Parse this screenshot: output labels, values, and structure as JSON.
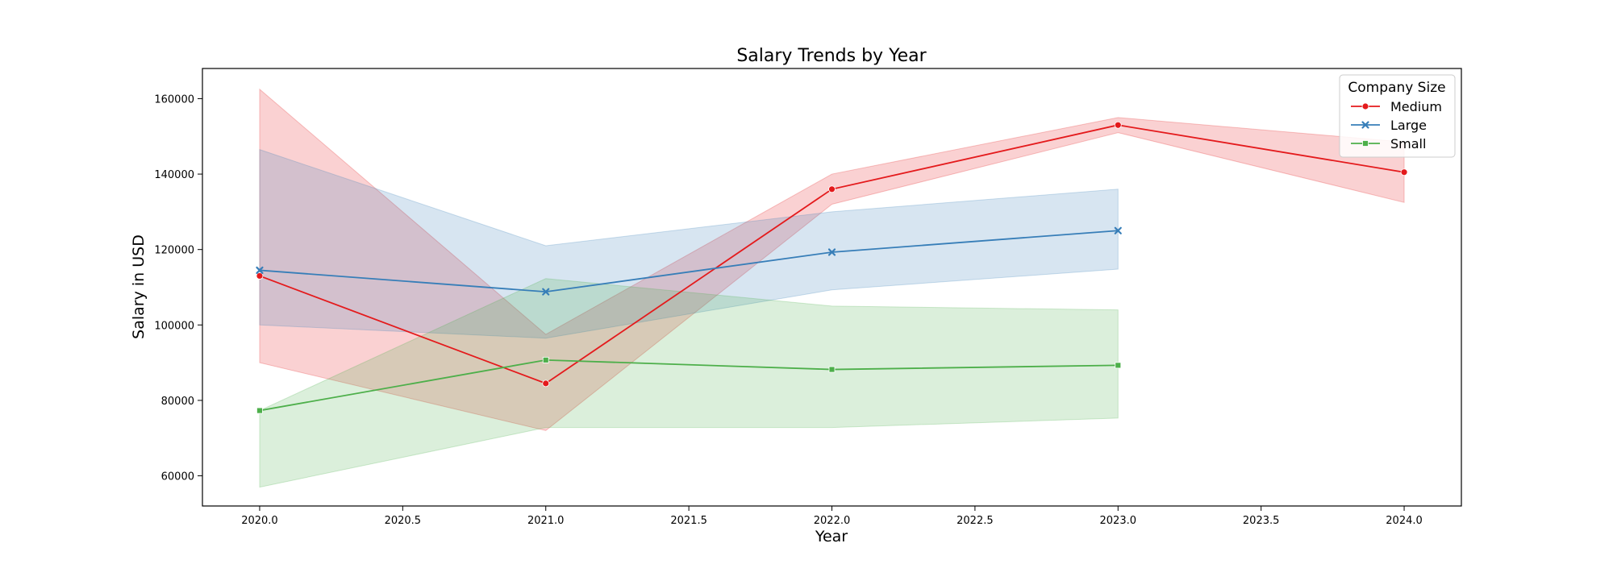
{
  "chart_data": {
    "type": "line",
    "title": "Salary Trends by Year",
    "xlabel": "Year",
    "ylabel": "Salary in USD",
    "xlim": [
      2019.8,
      2024.2
    ],
    "ylim": [
      52000,
      168000
    ],
    "x_ticks": [
      2020.0,
      2020.5,
      2021.0,
      2021.5,
      2022.0,
      2022.5,
      2023.0,
      2023.5,
      2024.0
    ],
    "x_tick_labels": [
      "2020.0",
      "2020.5",
      "2021.0",
      "2021.5",
      "2022.0",
      "2022.5",
      "2023.0",
      "2023.5",
      "2024.0"
    ],
    "y_ticks": [
      60000,
      80000,
      100000,
      120000,
      140000,
      160000
    ],
    "y_tick_labels": [
      "60000",
      "80000",
      "100000",
      "120000",
      "140000",
      "160000"
    ],
    "grid": false,
    "legend": {
      "title": "Company Size",
      "placement": "top-right"
    },
    "series": [
      {
        "name": "Medium",
        "color": "#e41a1c",
        "marker": "circle",
        "x": [
          2020,
          2021,
          2022,
          2023,
          2024
        ],
        "values": [
          113000,
          84500,
          136000,
          153000,
          140500
        ],
        "ci_low": [
          90000,
          72000,
          132000,
          151000,
          132500
        ],
        "ci_high": [
          162500,
          97500,
          140000,
          155000,
          148500
        ]
      },
      {
        "name": "Large",
        "color": "#377eb8",
        "marker": "x",
        "x": [
          2020,
          2021,
          2022,
          2023
        ],
        "values": [
          114500,
          108800,
          119300,
          125000
        ],
        "ci_low": [
          100000,
          96500,
          109300,
          114800
        ],
        "ci_high": [
          146500,
          121000,
          130000,
          136000
        ]
      },
      {
        "name": "Small",
        "color": "#4daf4a",
        "marker": "square",
        "x": [
          2020,
          2021,
          2022,
          2023
        ],
        "values": [
          77300,
          90700,
          88200,
          89300
        ],
        "ci_low": [
          57000,
          72800,
          72800,
          75300
        ],
        "ci_high": [
          77300,
          112300,
          105000,
          104000
        ]
      }
    ]
  }
}
